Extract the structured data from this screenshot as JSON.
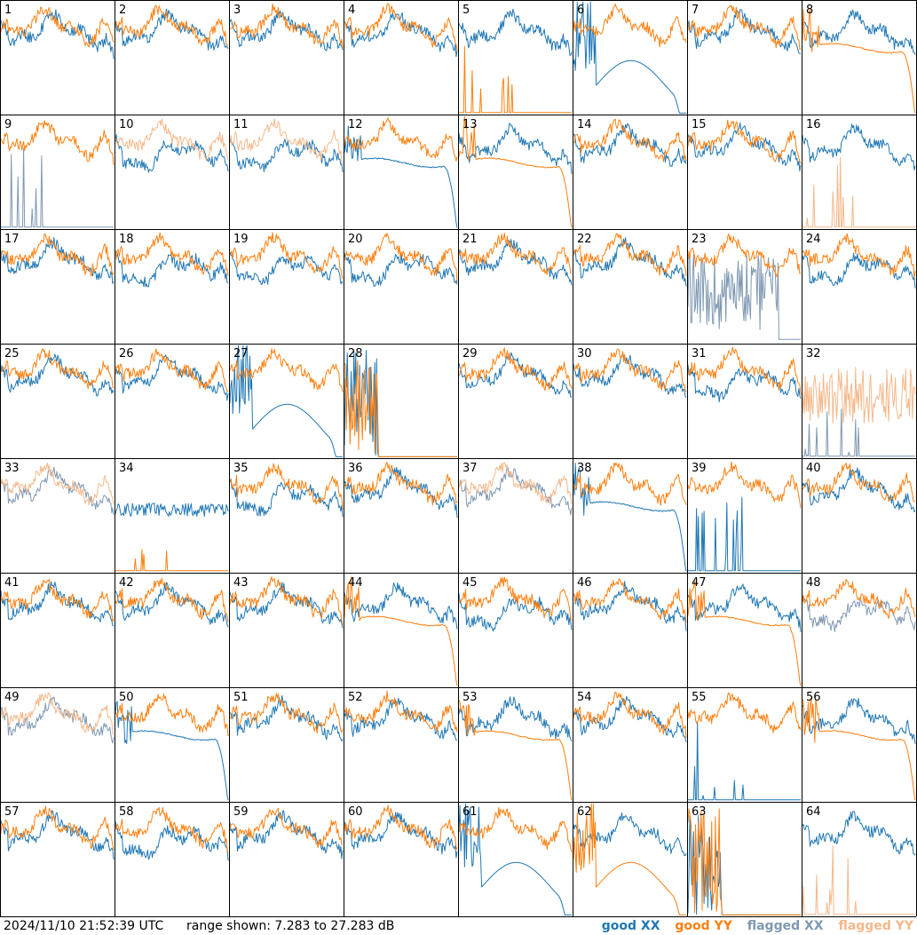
{
  "colors": {
    "good_xx": "#1f77b4",
    "good_yy": "#ff7f0e",
    "flagged_xx": "#7f98b2",
    "flagged_yy": "#f5b88a"
  },
  "footer": {
    "timestamp": "2024/11/10 21:52:39 UTC",
    "range_text": "range shown: 7.283 to 27.283 dB"
  },
  "chart_data": {
    "type": "line",
    "layout": "8x8 grid of small multiples, one per antenna",
    "y_range_db": [
      7.283,
      27.283
    ],
    "legend_placement": "bottom-right",
    "legend": [
      "good XX",
      "good YY",
      "flagged XX",
      "flagged YY"
    ],
    "panels": [
      {
        "id": "1",
        "xx": "good",
        "yy": "good",
        "shape": "wavy"
      },
      {
        "id": "2",
        "xx": "good",
        "yy": "good",
        "shape": "wavy"
      },
      {
        "id": "3",
        "xx": "good",
        "yy": "good",
        "shape": "wavy"
      },
      {
        "id": "4",
        "xx": "good",
        "yy": "good",
        "shape": "wavy"
      },
      {
        "id": "5",
        "xx": "good",
        "yy": "good",
        "shape": "yy_low_spikes"
      },
      {
        "id": "6",
        "xx": "good",
        "yy": "good",
        "shape": "xx_dip_dropoff"
      },
      {
        "id": "7",
        "xx": "good",
        "yy": "good",
        "shape": "wavy"
      },
      {
        "id": "8",
        "xx": "good",
        "yy": "good",
        "shape": "yy_smooth_dropoff"
      },
      {
        "id": "9",
        "xx": "flagged",
        "yy": "good",
        "shape": "xx_low_spikes"
      },
      {
        "id": "10",
        "xx": "good",
        "yy": "flagged",
        "shape": "wavy_dip"
      },
      {
        "id": "11",
        "xx": "good",
        "yy": "flagged",
        "shape": "wavy_dip"
      },
      {
        "id": "12",
        "xx": "good",
        "yy": "good",
        "shape": "xx_smooth_dropoff"
      },
      {
        "id": "13",
        "xx": "good",
        "yy": "good",
        "shape": "yy_smooth_dropoff"
      },
      {
        "id": "14",
        "xx": "good",
        "yy": "good",
        "shape": "wavy"
      },
      {
        "id": "15",
        "xx": "good",
        "yy": "good",
        "shape": "wavy"
      },
      {
        "id": "16",
        "xx": "good",
        "yy": "flagged",
        "shape": "yy_low_spikes"
      },
      {
        "id": "17",
        "xx": "good",
        "yy": "good",
        "shape": "wavy"
      },
      {
        "id": "18",
        "xx": "good",
        "yy": "good",
        "shape": "wavy_dip"
      },
      {
        "id": "19",
        "xx": "good",
        "yy": "good",
        "shape": "wavy_dip"
      },
      {
        "id": "20",
        "xx": "good",
        "yy": "good",
        "shape": "wavy_dip"
      },
      {
        "id": "21",
        "xx": "good",
        "yy": "good",
        "shape": "wavy"
      },
      {
        "id": "22",
        "xx": "good",
        "yy": "good",
        "shape": "wavy"
      },
      {
        "id": "23",
        "xx": "flagged",
        "yy": "good",
        "shape": "xx_noisy_low"
      },
      {
        "id": "24",
        "xx": "good",
        "yy": "good",
        "shape": "wavy_dip"
      },
      {
        "id": "25",
        "xx": "good",
        "yy": "good",
        "shape": "wavy"
      },
      {
        "id": "26",
        "xx": "good",
        "yy": "good",
        "shape": "wavy"
      },
      {
        "id": "27",
        "xx": "good",
        "yy": "good",
        "shape": "xx_dip_dropoff"
      },
      {
        "id": "28",
        "xx": "good",
        "yy": "good",
        "shape": "yy_burst_flat"
      },
      {
        "id": "29",
        "xx": "good",
        "yy": "good",
        "shape": "wavy"
      },
      {
        "id": "30",
        "xx": "good",
        "yy": "good",
        "shape": "wavy"
      },
      {
        "id": "31",
        "xx": "good",
        "yy": "good",
        "shape": "wavy_dip"
      },
      {
        "id": "32",
        "xx": "flagged",
        "yy": "flagged",
        "shape": "yy_noisy_mid"
      },
      {
        "id": "33",
        "xx": "flagged",
        "yy": "flagged",
        "shape": "wavy"
      },
      {
        "id": "34",
        "xx": "good",
        "yy": "good",
        "shape": "yy_low_spikes_xx_mid"
      },
      {
        "id": "35",
        "xx": "good",
        "yy": "good",
        "shape": "wavy_dip"
      },
      {
        "id": "36",
        "xx": "good",
        "yy": "good",
        "shape": "wavy"
      },
      {
        "id": "37",
        "xx": "flagged",
        "yy": "flagged",
        "shape": "wavy"
      },
      {
        "id": "38",
        "xx": "good",
        "yy": "good",
        "shape": "xx_smooth_dropoff"
      },
      {
        "id": "39",
        "xx": "good",
        "yy": "good",
        "shape": "xx_low_spikes"
      },
      {
        "id": "40",
        "xx": "good",
        "yy": "good",
        "shape": "wavy"
      },
      {
        "id": "41",
        "xx": "good",
        "yy": "good",
        "shape": "wavy"
      },
      {
        "id": "42",
        "xx": "good",
        "yy": "good",
        "shape": "wavy"
      },
      {
        "id": "43",
        "xx": "good",
        "yy": "good",
        "shape": "wavy"
      },
      {
        "id": "44",
        "xx": "good",
        "yy": "good",
        "shape": "yy_smooth_dropoff"
      },
      {
        "id": "45",
        "xx": "good",
        "yy": "good",
        "shape": "wavy_dip"
      },
      {
        "id": "46",
        "xx": "good",
        "yy": "good",
        "shape": "wavy"
      },
      {
        "id": "47",
        "xx": "good",
        "yy": "good",
        "shape": "yy_smooth_dropoff"
      },
      {
        "id": "48",
        "xx": "flagged",
        "yy": "good",
        "shape": "wavy_dip"
      },
      {
        "id": "49",
        "xx": "flagged",
        "yy": "flagged",
        "shape": "wavy"
      },
      {
        "id": "50",
        "xx": "good",
        "yy": "good",
        "shape": "xx_smooth_dropoff"
      },
      {
        "id": "51",
        "xx": "good",
        "yy": "good",
        "shape": "wavy"
      },
      {
        "id": "52",
        "xx": "good",
        "yy": "good",
        "shape": "wavy"
      },
      {
        "id": "53",
        "xx": "good",
        "yy": "good",
        "shape": "yy_smooth_dropoff"
      },
      {
        "id": "54",
        "xx": "good",
        "yy": "good",
        "shape": "wavy"
      },
      {
        "id": "55",
        "xx": "good",
        "yy": "good",
        "shape": "xx_low_spikes"
      },
      {
        "id": "56",
        "xx": "good",
        "yy": "good",
        "shape": "yy_smooth_dropoff"
      },
      {
        "id": "57",
        "xx": "good",
        "yy": "good",
        "shape": "wavy"
      },
      {
        "id": "58",
        "xx": "good",
        "yy": "good",
        "shape": "wavy_dip"
      },
      {
        "id": "59",
        "xx": "good",
        "yy": "good",
        "shape": "wavy"
      },
      {
        "id": "60",
        "xx": "good",
        "yy": "good",
        "shape": "wavy"
      },
      {
        "id": "61",
        "xx": "good",
        "yy": "good",
        "shape": "xx_dip_dropoff"
      },
      {
        "id": "62",
        "xx": "good",
        "yy": "good",
        "shape": "yy_dip_dropoff"
      },
      {
        "id": "63",
        "xx": "good",
        "yy": "good",
        "shape": "yy_burst_flat"
      },
      {
        "id": "64",
        "xx": "good",
        "yy": "flagged",
        "shape": "yy_low_spikes"
      }
    ]
  }
}
